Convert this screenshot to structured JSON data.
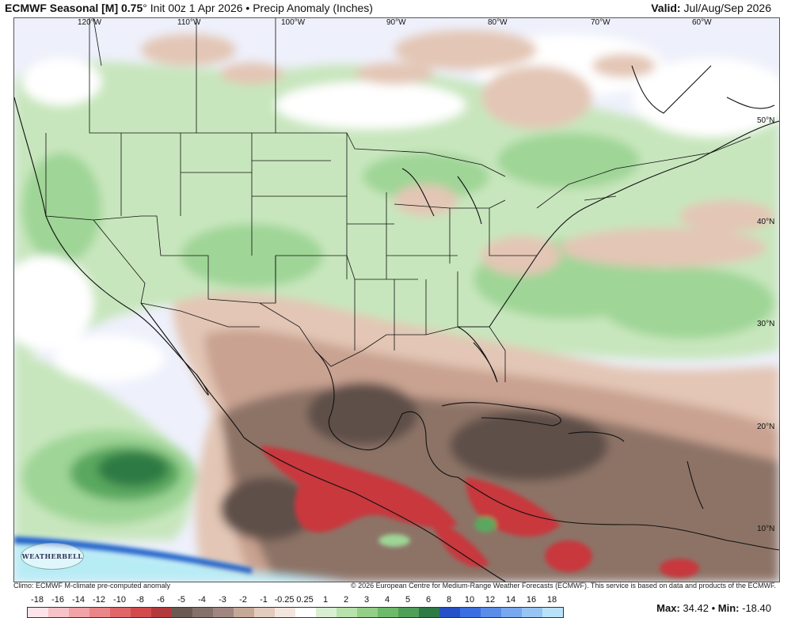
{
  "header": {
    "model": "ECMWF Seasonal [M] 0.75",
    "degree": "°",
    "init": "Init 00z 1 Apr 2026",
    "bullet": "•",
    "field": "Precip Anomaly (Inches)",
    "valid_label": "Valid:",
    "valid_value": "Jul/Aug/Sep 2026"
  },
  "map": {
    "lon_labels": [
      "120°W",
      "110°W",
      "100°W",
      "90°W",
      "80°W",
      "70°W",
      "60°W"
    ],
    "lat_labels": [
      "50°N",
      "40°N",
      "30°N",
      "20°N",
      "10°N"
    ],
    "logo_text": "WEATHERBELL",
    "colors": {
      "ocean_neutral": "#eef0fb",
      "wet_light": "#c8e6bd",
      "wet_mid": "#9fd596",
      "wet_dark": "#5aa85e",
      "wet_deep": "#2f7a45",
      "dry_light": "#e3c6b5",
      "dry_mid": "#c9a291",
      "dry_dark": "#8d7366",
      "dry_deep": "#5f4f48",
      "very_dry": "#c8383c",
      "very_wet_blue": "#3a6bd6",
      "coast_blue": "#1e5fc9",
      "pacific_cyan": "#b8ecf5"
    }
  },
  "footer": {
    "climo": "Climo: ECMWF M-climate pre-computed anomaly",
    "copyright": "© 2026 European Centre for Medium-Range Weather Forecasts (ECMWF). This service is based on data and products of the ECMWF."
  },
  "scale": {
    "labels": [
      "-18",
      "-16",
      "-14",
      "-12",
      "-10",
      "-8",
      "-6",
      "-5",
      "-4",
      "-3",
      "-2",
      "-1",
      "-0.25",
      "0.25",
      "1",
      "2",
      "3",
      "4",
      "5",
      "6",
      "8",
      "10",
      "12",
      "14",
      "16",
      "18"
    ],
    "colors": [
      "#fde4ea",
      "#f7c3c8",
      "#f1a3a8",
      "#e98689",
      "#df6669",
      "#d14a4c",
      "#b23a3c",
      "#6b5a52",
      "#86706a",
      "#a08580",
      "#c6a897",
      "#e3cbbd",
      "#f3e6de",
      "#ffffff",
      "#d9efd2",
      "#b8e2ac",
      "#93cf88",
      "#6dbb6a",
      "#4f9f58",
      "#2f7a45",
      "#2650c8",
      "#3b6ee0",
      "#5a8ce8",
      "#78a8ee",
      "#98c4f3",
      "#b9e2f8"
    ]
  },
  "stats": {
    "max_label": "Max:",
    "max_value": "34.42",
    "min_label": "Min:",
    "min_value": "-18.40",
    "sep": "•"
  }
}
